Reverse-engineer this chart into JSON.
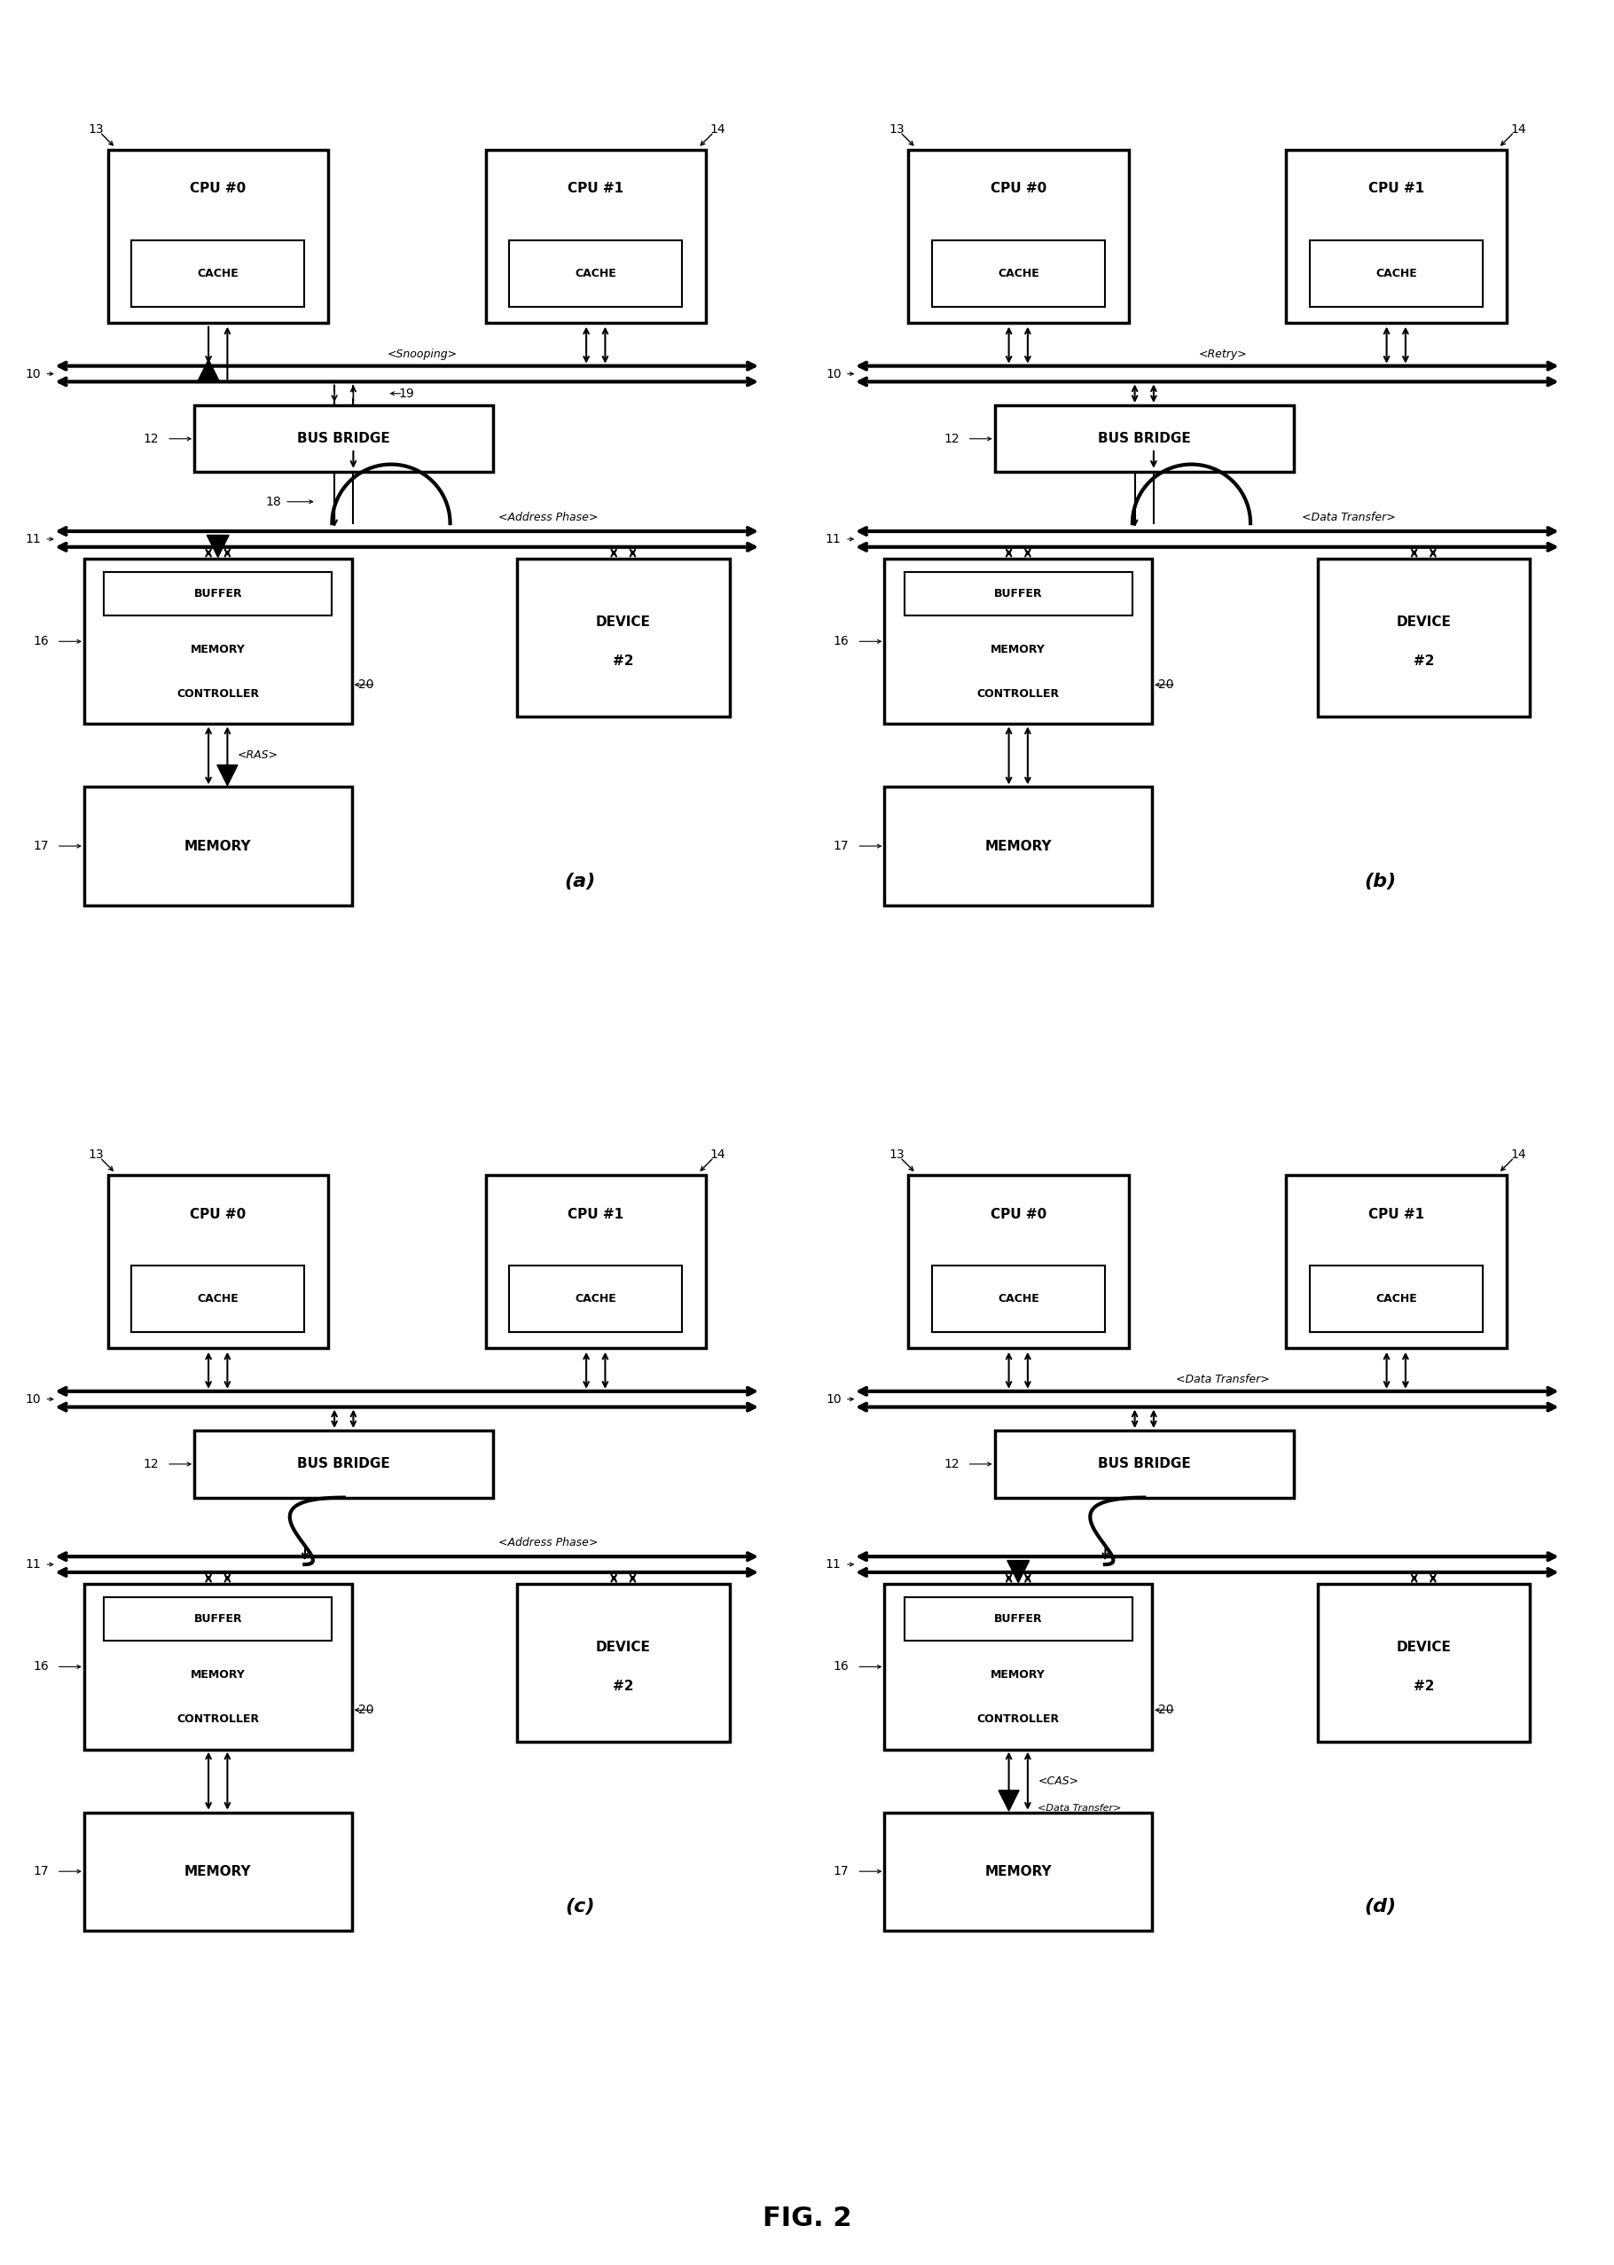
{
  "title": "FIG. 2",
  "background_color": "#ffffff",
  "panels": [
    {
      "label": "(a)",
      "col": 0,
      "row": 0,
      "bus_label": "<Snooping>",
      "bridge_to_bus_label": "<Address Phase>",
      "mem_ctrl_to_mem_label": "<RAS>"
    },
    {
      "label": "(b)",
      "col": 1,
      "row": 0,
      "bus_label": "<Retry>",
      "bridge_to_bus_label": "<Data Transfer>",
      "mem_ctrl_to_mem_label": ""
    },
    {
      "label": "(c)",
      "col": 0,
      "row": 1,
      "bus_label": "",
      "bridge_to_bus_label": "<Address Phase>",
      "mem_ctrl_to_mem_label": ""
    },
    {
      "label": "(d)",
      "col": 1,
      "row": 1,
      "bus_label": "<Data Transfer>",
      "bridge_to_bus_label": "",
      "mem_ctrl_to_mem_label": "<CAS>"
    }
  ]
}
